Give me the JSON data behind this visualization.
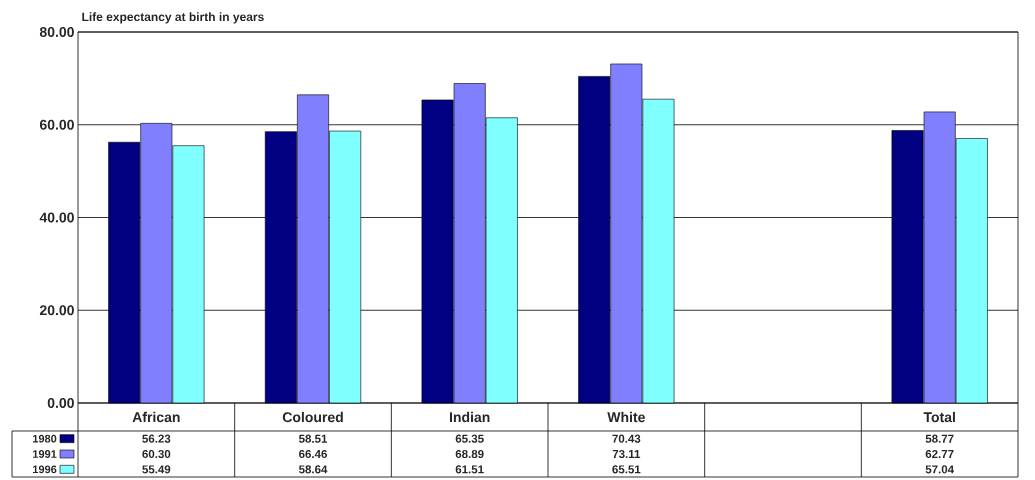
{
  "chart_data": {
    "type": "bar",
    "title": "Life expectancy at birth in years",
    "categories": [
      "African",
      "Coloured",
      "Indian",
      "White",
      null,
      "Total"
    ],
    "series": [
      {
        "name": "1980",
        "color": "#000080",
        "values": [
          56.23,
          58.51,
          65.35,
          70.43,
          null,
          58.77
        ],
        "value_labels": [
          "56.23",
          "58.51",
          "65.35",
          "70.43",
          null,
          "58.77"
        ]
      },
      {
        "name": "1991",
        "color": "#8080ff",
        "values": [
          60.3,
          66.46,
          68.89,
          73.11,
          null,
          62.77
        ],
        "value_labels": [
          "60.30",
          "66.46",
          "68.89",
          "73.11",
          null,
          "62.77"
        ]
      },
      {
        "name": "1996",
        "color": "#80ffff",
        "values": [
          55.49,
          58.64,
          61.51,
          65.51,
          null,
          57.04
        ],
        "value_labels": [
          "55.49",
          "58.64",
          "61.51",
          "65.51",
          null,
          "57.04"
        ]
      }
    ],
    "ylim": [
      0,
      80
    ],
    "yticks": [
      {
        "value": 0,
        "label": "0.00"
      },
      {
        "value": 20,
        "label": "20.00"
      },
      {
        "value": 40,
        "label": "40.00"
      },
      {
        "value": 60,
        "label": "60.00"
      },
      {
        "value": 80,
        "label": "80.00"
      }
    ],
    "grid": "y",
    "legend": "bottom"
  }
}
